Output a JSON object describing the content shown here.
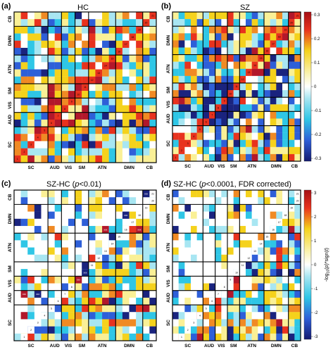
{
  "chart_data": [
    {
      "type": "heatmap",
      "panel_label": "(a)",
      "title": "HC",
      "x_labels": [
        "SC",
        "AUD",
        "VIS",
        "SM",
        "ATN",
        "DMN",
        "CB"
      ],
      "y_labels": [
        "CB",
        "DMN",
        "ATN",
        "SM",
        "VIS",
        "AUD",
        "SC"
      ],
      "n_components": 21,
      "module_sizes": {
        "SC": 5,
        "AUD": 2,
        "VIS": 2,
        "SM": 2,
        "ATN": 4,
        "DMN": 4,
        "CB": 2
      },
      "colorbar": {
        "range": [
          -0.3,
          0.3
        ],
        "ticks": [
          "0.3",
          "0.2",
          "0.1",
          "0",
          "-0.1",
          "-0.2",
          "-0.3"
        ]
      },
      "diagonal_ranks": [
        "1",
        "2",
        "3",
        "4",
        "5",
        "6",
        "7",
        "8",
        "9",
        "10",
        "11",
        "12",
        "13",
        "14",
        "15",
        "16",
        "17",
        "18",
        "19",
        "20",
        "21"
      ]
    },
    {
      "type": "heatmap",
      "panel_label": "(b)",
      "title": "SZ",
      "x_labels": [
        "SC",
        "AUD",
        "VIS",
        "SM",
        "ATN",
        "DMN",
        "CB"
      ],
      "y_labels": [
        "CB",
        "DMN",
        "ATN",
        "SM",
        "VIS",
        "AUD",
        "SC"
      ],
      "n_components": 21,
      "colorbar": {
        "range": [
          -0.3,
          0.3
        ],
        "ticks": [
          "0.3",
          "0.2",
          "0.1",
          "0",
          "-0.1",
          "-0.2",
          "-0.3"
        ]
      }
    },
    {
      "type": "heatmap",
      "panel_label": "(c)",
      "title": "SZ-HC (p<0.01)",
      "title_parts": [
        "SZ-HC (",
        "p",
        "<0.01)"
      ],
      "x_labels": [
        "SC",
        "AUD",
        "VIS",
        "SM",
        "ATN",
        "DMN",
        "CB"
      ],
      "y_labels": [
        "CB",
        "DMN",
        "ATN",
        "SM",
        "VIS",
        "AUD",
        "SC"
      ],
      "n_components": 21,
      "annotations": [
        "xxx",
        "xxx",
        "xxx",
        "xxx",
        "xxx",
        "xxx",
        "xxx",
        "xxx"
      ],
      "numbers": [
        "1",
        "2",
        "3",
        "4",
        "5",
        "6",
        "7",
        "8",
        "9",
        "10",
        "11",
        "12",
        "13",
        "14",
        "15",
        "16",
        "17",
        "18",
        "19",
        "20",
        "21"
      ]
    },
    {
      "type": "heatmap",
      "panel_label": "(d)",
      "title": "SZ-HC (p<0.0001, FDR corrected)",
      "title_parts": [
        "SZ-HC (",
        "p",
        "<0.0001, FDR corrected)"
      ],
      "x_labels": [
        "SC",
        "AUD",
        "VIS",
        "SM",
        "ATN",
        "DMN",
        "CB"
      ],
      "y_labels": [
        "CB",
        "DMN",
        "ATN",
        "SM",
        "VIS",
        "AUD",
        "SC"
      ],
      "n_components": 21,
      "colorbar": {
        "range": [
          -3,
          3
        ],
        "ticks": [
          "3",
          "2",
          "1",
          "0",
          "-1",
          "-2",
          "-3"
        ],
        "title": "-log10(p)*sign(t)",
        "title_parts": [
          "-log",
          "10",
          "(",
          ")*sign(",
          ")"
        ],
        "title_italics": [
          "p",
          "t"
        ]
      }
    }
  ],
  "colors": {
    "deep_red": "#b2182b",
    "red": "#e8321e",
    "orange": "#f08a24",
    "yellow": "#f5d21c",
    "light_yellow": "#faf096",
    "white": "#ffffff",
    "light_cyan": "#a8e6f2",
    "cyan": "#2fc6e6",
    "blue": "#2e5fd8",
    "navy": "#1a237e"
  }
}
